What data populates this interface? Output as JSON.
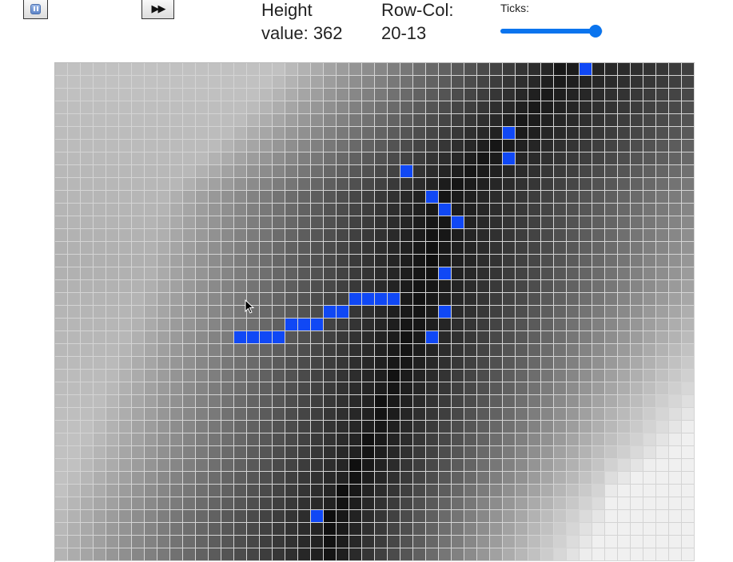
{
  "toolbar": {
    "pause_icon": "pause-icon",
    "fast_forward_label": "▶▶"
  },
  "info": {
    "height_label": "Height",
    "height_value_line": "value: 362",
    "rowcol_label": "Row-Col:",
    "rowcol_value": "20-13",
    "ticks_label": "Ticks:"
  },
  "ticks_slider": {
    "value_fraction": 0.93,
    "accent_color": "#0a74ee"
  },
  "grid": {
    "visible_rows": 39,
    "visible_cols": 50,
    "highlight_color": "#1048f5",
    "highlighted_cells": [
      [
        0,
        41
      ],
      [
        5,
        35
      ],
      [
        7,
        35
      ],
      [
        8,
        27
      ],
      [
        10,
        29
      ],
      [
        11,
        30
      ],
      [
        12,
        31
      ],
      [
        16,
        30
      ],
      [
        18,
        23
      ],
      [
        18,
        24
      ],
      [
        18,
        25
      ],
      [
        18,
        26
      ],
      [
        19,
        21
      ],
      [
        19,
        22
      ],
      [
        19,
        30
      ],
      [
        20,
        18
      ],
      [
        20,
        19
      ],
      [
        20,
        20
      ],
      [
        21,
        14
      ],
      [
        21,
        15
      ],
      [
        21,
        16
      ],
      [
        21,
        17
      ],
      [
        21,
        29
      ],
      [
        35,
        20
      ]
    ]
  }
}
